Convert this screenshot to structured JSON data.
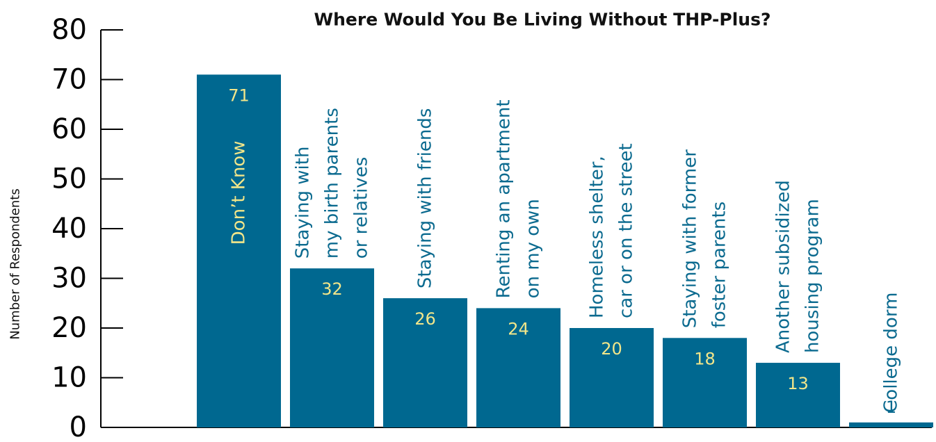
{
  "chart_data": {
    "type": "bar",
    "title": "Where Would You Be Living Without THP-Plus?",
    "y_label": "Number of Respondents",
    "categories": [
      "Don’t Know",
      "Staying with\nmy birth parents\nor relatives",
      "Staying with friends",
      "Renting an apartment\non my own",
      "Homeless shelter,\ncar or on the street",
      "Staying with former\nfoster parents",
      "Another subsidized\nhousing program",
      "College dorm"
    ],
    "values": [
      71,
      32,
      26,
      24,
      20,
      18,
      13,
      1
    ],
    "color": "#006890",
    "ylim": [
      0,
      80
    ],
    "yticks": [
      0,
      10,
      20,
      30,
      40,
      50,
      60,
      70,
      80
    ]
  }
}
